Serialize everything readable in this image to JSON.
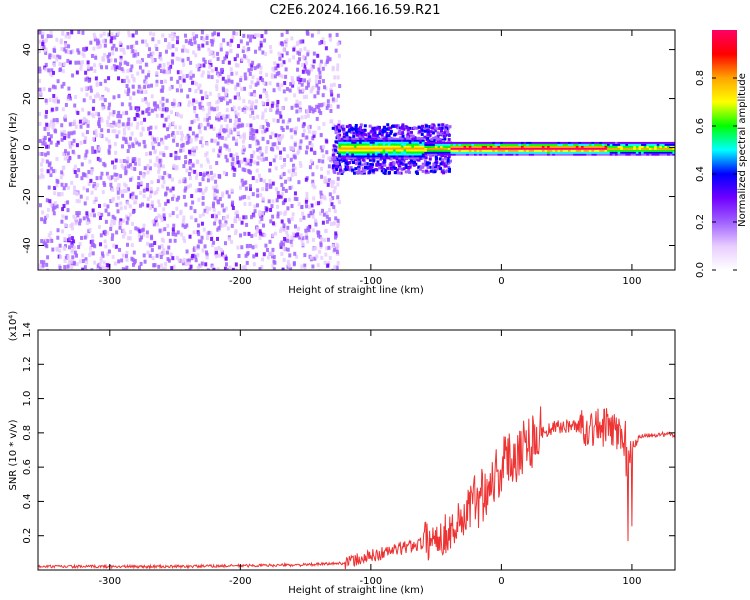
{
  "figure": {
    "title": "C2E6.2024.166.16.59.R21"
  },
  "chart_data": [
    {
      "type": "heatmap",
      "xlabel": "Height of straight line (km)",
      "ylabel": "Frequency (Hz)",
      "xlim": [
        -355,
        133
      ],
      "ylim": [
        -50,
        48
      ],
      "x_ticks": [
        -300,
        -200,
        -100,
        0,
        100
      ],
      "x_tick_labels": [
        "-300",
        "-200",
        "-100",
        "0",
        "100"
      ],
      "y_ticks": [
        -40,
        -20,
        0,
        20,
        40
      ],
      "y_tick_labels": [
        "-40",
        "-20",
        "0",
        "20",
        "40"
      ],
      "colorbar": {
        "label": "Normalized spectral amplitude",
        "range": [
          0,
          1
        ],
        "ticks": [
          0.0,
          0.2,
          0.4,
          0.6,
          0.8
        ],
        "tick_labels": [
          "0.0",
          "0.2",
          "0.4",
          "0.6",
          "0.8"
        ],
        "colormap": [
          "#ffffff",
          "#e8ccff",
          "#a060ff",
          "#7000ff",
          "#0000ff",
          "#00ffff",
          "#00ff00",
          "#ffff00",
          "#ffa500",
          "#ff0000",
          "#ff0066"
        ]
      },
      "features": {
        "noise_region_x": [
          -355,
          -125
        ],
        "signal_line_freq_hz": 0,
        "max_amplitude_region_x": [
          -40,
          80
        ]
      }
    },
    {
      "type": "line",
      "xlabel": "Height of straight line (km)",
      "ylabel": "SNR (10 * v/v)",
      "y_multiplier": "(x10⁴)",
      "xlim": [
        -355,
        133
      ],
      "ylim": [
        0,
        1.4
      ],
      "x_ticks": [
        -300,
        -200,
        -100,
        0,
        100
      ],
      "x_tick_labels": [
        "-300",
        "-200",
        "-100",
        "0",
        "100"
      ],
      "y_ticks": [
        0.2,
        0.4,
        0.6,
        0.8,
        1.0,
        1.2,
        1.4
      ],
      "y_tick_labels": [
        "0.2",
        "0.4",
        "0.6",
        "0.8",
        "1.0",
        "1.2",
        "1.4"
      ],
      "color": "#ee3333",
      "series": [
        {
          "x": [
            -355,
            -300,
            -250,
            -200,
            -150,
            -120,
            -100,
            -80,
            -60,
            -40,
            -25,
            -10,
            0,
            10,
            20,
            30,
            40,
            50,
            60,
            70,
            80,
            90,
            95,
            100,
            105,
            115,
            133
          ],
          "y": [
            0.02,
            0.02,
            0.02,
            0.025,
            0.03,
            0.04,
            0.08,
            0.12,
            0.16,
            0.22,
            0.35,
            0.5,
            0.6,
            0.68,
            0.75,
            0.8,
            0.83,
            0.84,
            0.84,
            0.83,
            0.83,
            0.8,
            0.75,
            0.7,
            0.78,
            0.79,
            0.79
          ]
        }
      ]
    }
  ]
}
